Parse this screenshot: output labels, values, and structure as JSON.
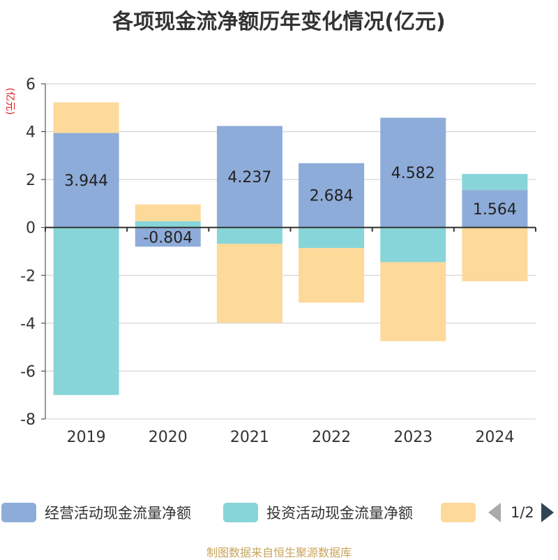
{
  "title": "各项现金流净额历年变化情况(亿元)",
  "source": "制图数据来自恒生聚源数据库",
  "colors": {
    "operating": "#8eacd9",
    "investing": "#87d5d8",
    "financing": "#fdd99a",
    "axis": "#333333",
    "grid": "#cccccc",
    "ylabel": "#e02020"
  },
  "legend": {
    "items": [
      "经营活动现金流量净额",
      "投资活动现金流量净额",
      ""
    ],
    "page": "1/2"
  },
  "chart_data": {
    "type": "bar",
    "stacked": true,
    "title": "各项现金流净额历年变化情况(亿元)",
    "ylabel": "(亿元)",
    "xlabel": "",
    "ylim": [
      -8,
      6
    ],
    "yticks": [
      6,
      4,
      2,
      0,
      -2,
      -4,
      -6,
      -8
    ],
    "grid": true,
    "legend_position": "bottom",
    "categories": [
      "2019",
      "2020",
      "2021",
      "2022",
      "2023",
      "2024"
    ],
    "series": [
      {
        "name": "经营活动现金流量净额",
        "values": [
          3.944,
          -0.804,
          4.237,
          2.684,
          4.582,
          1.564
        ],
        "labels": [
          "3.944",
          "-0.804",
          "4.237",
          "2.684",
          "4.582",
          "1.564"
        ]
      },
      {
        "name": "投资活动现金流量净额",
        "values": [
          -7.0,
          0.26,
          -0.68,
          -0.86,
          -1.45,
          0.67
        ]
      },
      {
        "values": [
          1.28,
          0.7,
          -3.3,
          -2.28,
          -3.3,
          -2.25
        ]
      }
    ]
  }
}
